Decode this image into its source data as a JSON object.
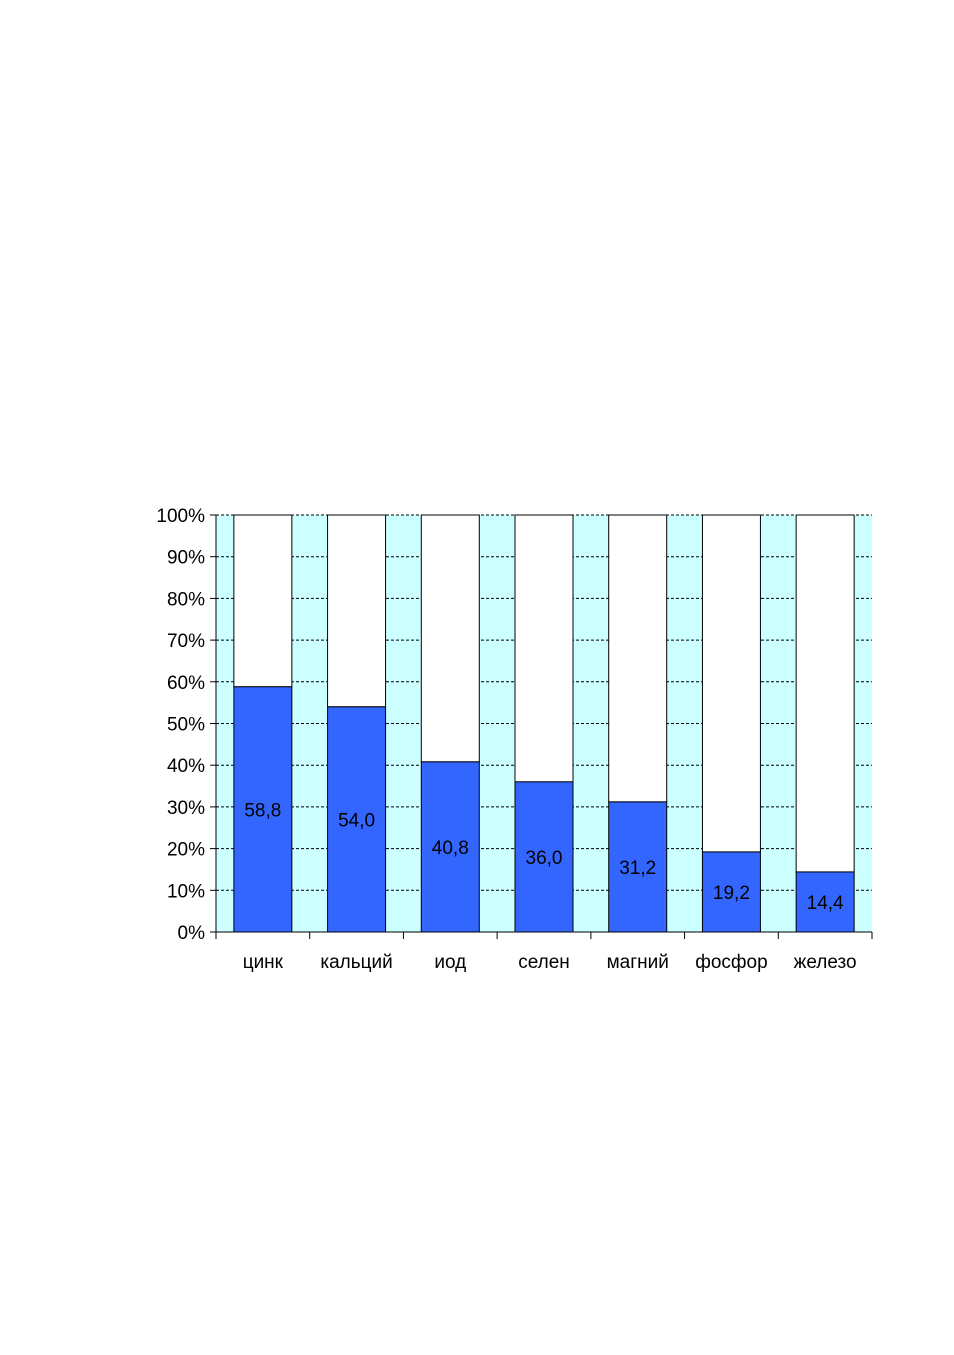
{
  "chart_data": {
    "type": "bar",
    "stacked_percent": true,
    "categories": [
      "цинк",
      "кальций",
      "иод",
      "селен",
      "магний",
      "фосфор",
      "железо"
    ],
    "values": [
      58.8,
      54.0,
      40.8,
      36.0,
      31.2,
      19.2,
      14.4
    ],
    "data_labels": [
      "58,8",
      "54,0",
      "40,8",
      "36,0",
      "31,2",
      "19,2",
      "14,4"
    ],
    "ylim": [
      0,
      100
    ],
    "yticks": [
      0,
      10,
      20,
      30,
      40,
      50,
      60,
      70,
      80,
      90,
      100
    ],
    "ytick_labels": [
      "0%",
      "10%",
      "20%",
      "30%",
      "40%",
      "50%",
      "60%",
      "70%",
      "80%",
      "90%",
      "100%"
    ],
    "grid": "dashed horizontal",
    "title": "",
    "xlabel": "",
    "ylabel": "",
    "colors": {
      "bar_fill": "#3366ff",
      "remainder_fill": "#ffffff",
      "plot_background": "#ccffff",
      "outline": "#000000"
    }
  }
}
